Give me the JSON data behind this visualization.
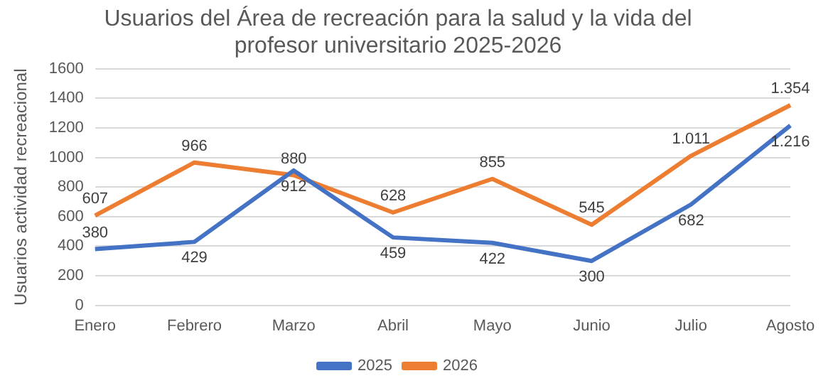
{
  "chart_data": {
    "type": "line",
    "title": "Usuarios del Área de recreación para la salud y la vida del profesor universitario 2025-2026",
    "ylabel": "Usuarios actividad recreacional",
    "categories": [
      "Enero",
      "Febrero",
      "Marzo",
      "Abril",
      "Mayo",
      "Junio",
      "Julio",
      "Agosto"
    ],
    "series": [
      {
        "name": "2025",
        "color": "#4472c4",
        "values": [
          380,
          429,
          912,
          459,
          422,
          300,
          682,
          1216
        ],
        "value_labels": [
          "380",
          "429",
          "912",
          "459",
          "422",
          "300",
          "682",
          "1.216"
        ]
      },
      {
        "name": "2026",
        "color": "#ed7d31",
        "values": [
          607,
          966,
          880,
          628,
          855,
          545,
          1011,
          1354
        ],
        "value_labels": [
          "607",
          "966",
          "880",
          "628",
          "855",
          "545",
          "1.011",
          "1.354"
        ]
      }
    ],
    "ylim": [
      0,
      1600
    ],
    "yticks": [
      0,
      200,
      400,
      600,
      800,
      1000,
      1200,
      1400,
      1600
    ],
    "grid": "y",
    "legend": "bottom",
    "marker": "none",
    "line_style": "solid"
  }
}
